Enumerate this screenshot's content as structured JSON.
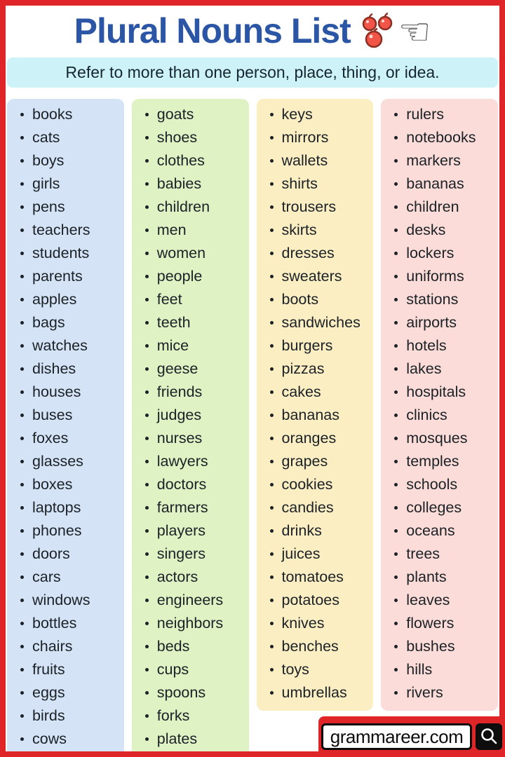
{
  "header": {
    "title": "Plural Nouns List",
    "subtitle": "Refer to more than one person, place, thing, or idea.",
    "icons": [
      "apples-icon",
      "pointing-hand-icon"
    ]
  },
  "columns": [
    {
      "color": "#d4e4f6",
      "items": [
        "books",
        "cats",
        "boys",
        "girls",
        "pens",
        "teachers",
        "students",
        "parents",
        "apples",
        "bags",
        "watches",
        "dishes",
        "houses",
        "buses",
        "foxes",
        "glasses",
        "boxes",
        "laptops",
        "phones",
        "doors",
        "cars",
        "windows",
        "bottles",
        "chairs",
        "fruits",
        "eggs",
        "birds",
        "cows"
      ]
    },
    {
      "color": "#dff2c4",
      "items": [
        "goats",
        "shoes",
        "clothes",
        "babies",
        "children",
        "men",
        "women",
        "people",
        "feet",
        "teeth",
        "mice",
        "geese",
        "friends",
        "judges",
        "nurses",
        "lawyers",
        "doctors",
        "farmers",
        "players",
        "singers",
        "actors",
        "engineers",
        "neighbors",
        "beds",
        "cups",
        "spoons",
        "forks",
        "plates"
      ]
    },
    {
      "color": "#fbeec3",
      "items": [
        "keys",
        "mirrors",
        "wallets",
        "shirts",
        "trousers",
        "skirts",
        "dresses",
        "sweaters",
        "boots",
        "sandwiches",
        "burgers",
        "pizzas",
        "cakes",
        "bananas",
        "oranges",
        "grapes",
        "cookies",
        "candies",
        "drinks",
        "juices",
        "tomatoes",
        "potatoes",
        "knives",
        "benches",
        "toys",
        "umbrellas"
      ]
    },
    {
      "color": "#fbdcd8",
      "items": [
        "rulers",
        "notebooks",
        "markers",
        "bananas",
        "children",
        "desks",
        "lockers",
        "uniforms",
        "stations",
        "airports",
        "hotels",
        "lakes",
        "hospitals",
        "clinics",
        "mosques",
        "temples",
        "schools",
        "colleges",
        "oceans",
        "trees",
        "plants",
        "leaves",
        "flowers",
        "bushes",
        "hills",
        "rivers"
      ]
    }
  ],
  "footer": {
    "site": "grammareer.com",
    "search_icon": "magnifying-glass-icon"
  },
  "colors": {
    "border-red": "#e02528",
    "title-blue": "#2b55a5",
    "banner-bg": "#cdf2f8",
    "apple-red": "#f05548",
    "apple-outline": "#8d2f23"
  }
}
